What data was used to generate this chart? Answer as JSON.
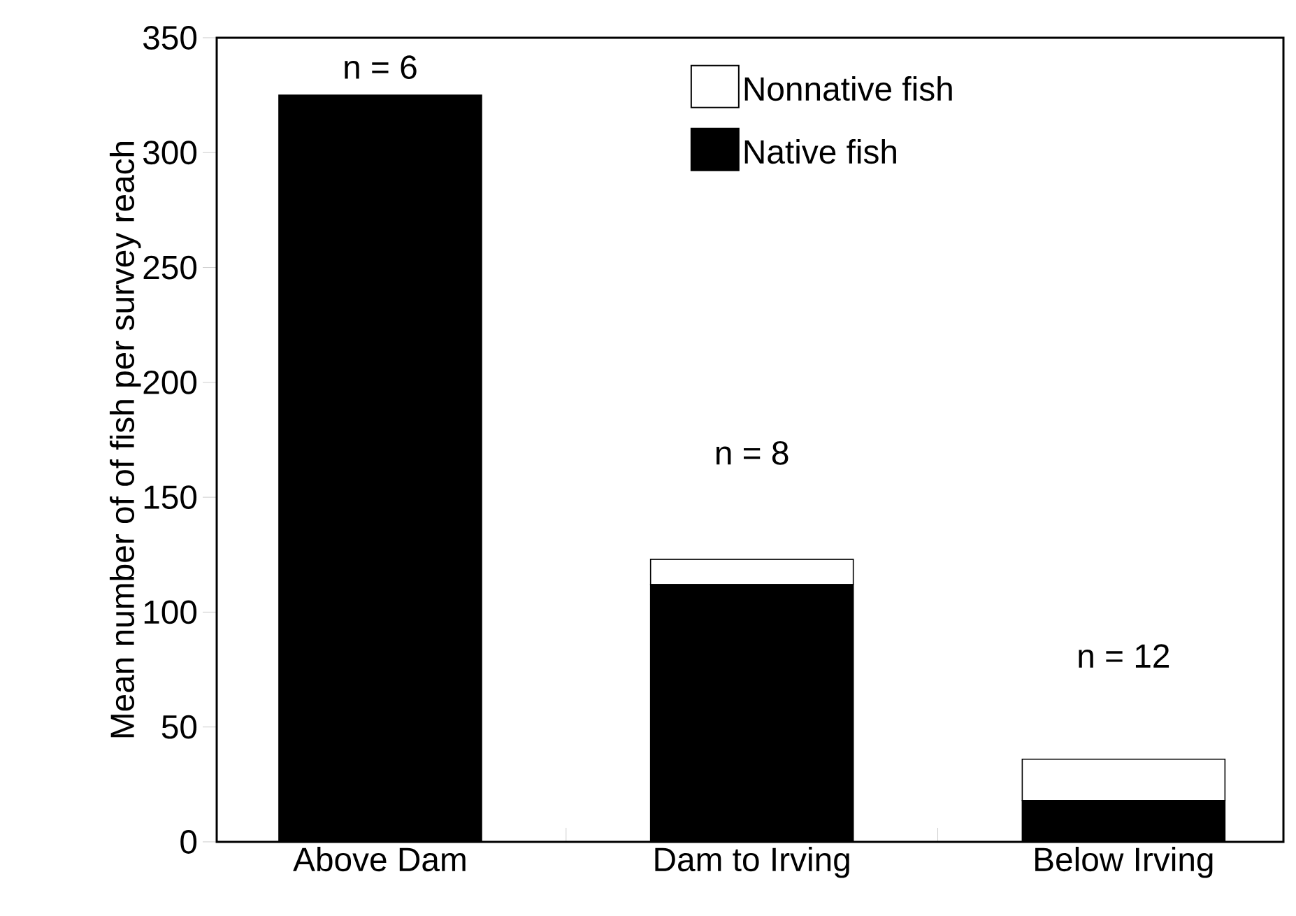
{
  "chart_data": {
    "type": "bar",
    "stacked": true,
    "ylabel": "Mean number of  of fish per survey reach",
    "categories": [
      "Above Dam",
      "Dam to Irving",
      "Below Irving"
    ],
    "series": [
      {
        "name": "Native fish",
        "color": "#000000",
        "values": [
          325,
          112,
          18
        ]
      },
      {
        "name": "Nonnative fish",
        "color": "#ffffff",
        "values": [
          0,
          11,
          18
        ]
      }
    ],
    "ylim": [
      0,
      350
    ],
    "yticks": [
      0,
      50,
      100,
      150,
      200,
      250,
      300,
      350
    ],
    "grid": false,
    "legend": "top right",
    "annotations": [
      "n = 6",
      "n = 8",
      "n = 12"
    ]
  }
}
